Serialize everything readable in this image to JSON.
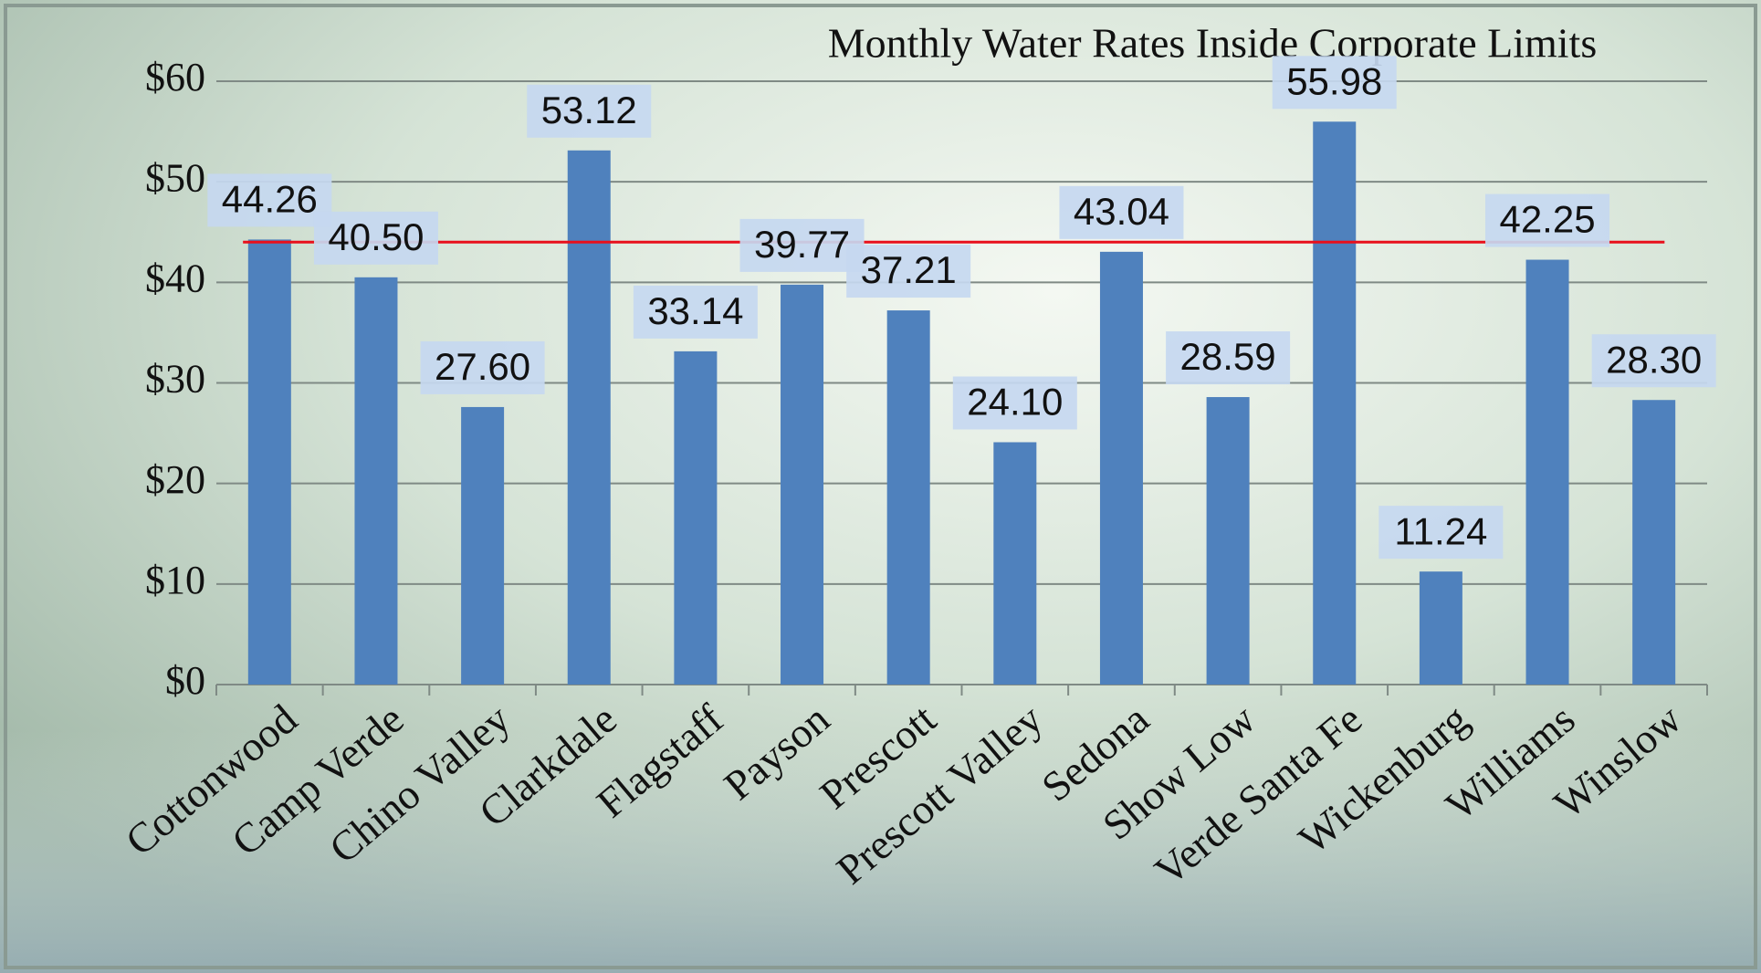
{
  "chart_data": {
    "type": "bar",
    "title": "Monthly Water Rates Inside Corporate Limits",
    "categories": [
      "Cottonwood",
      "Camp Verde",
      "Chino Valley",
      "Clarkdale",
      "Flagstaff",
      "Payson",
      "Prescott",
      "Prescott Valley",
      "Sedona",
      "Show Low",
      "Verde Santa Fe",
      "Wickenburg",
      "Williams",
      "Winslow"
    ],
    "values": [
      44.26,
      40.5,
      27.6,
      53.12,
      33.14,
      39.77,
      37.21,
      24.1,
      43.04,
      28.59,
      55.98,
      11.24,
      42.25,
      28.3
    ],
    "value_labels": [
      "44.26",
      "40.50",
      "27.60",
      "53.12",
      "33.14",
      "39.77",
      "37.21",
      "24.10",
      "43.04",
      "28.59",
      "55.98",
      "11.24",
      "42.25",
      "28.30"
    ],
    "color": "#4f81bd",
    "reference_line": 44,
    "reference_color": "#e8101c",
    "ylim": [
      0,
      60
    ],
    "yticks": [
      {
        "value": 0,
        "label": "$0"
      },
      {
        "value": 10,
        "label": "$10"
      },
      {
        "value": 20,
        "label": "$20"
      },
      {
        "value": 30,
        "label": "$30"
      },
      {
        "value": 40,
        "label": "$40"
      },
      {
        "value": 50,
        "label": "$50"
      },
      {
        "value": 60,
        "label": "$60"
      }
    ],
    "grid": true
  }
}
